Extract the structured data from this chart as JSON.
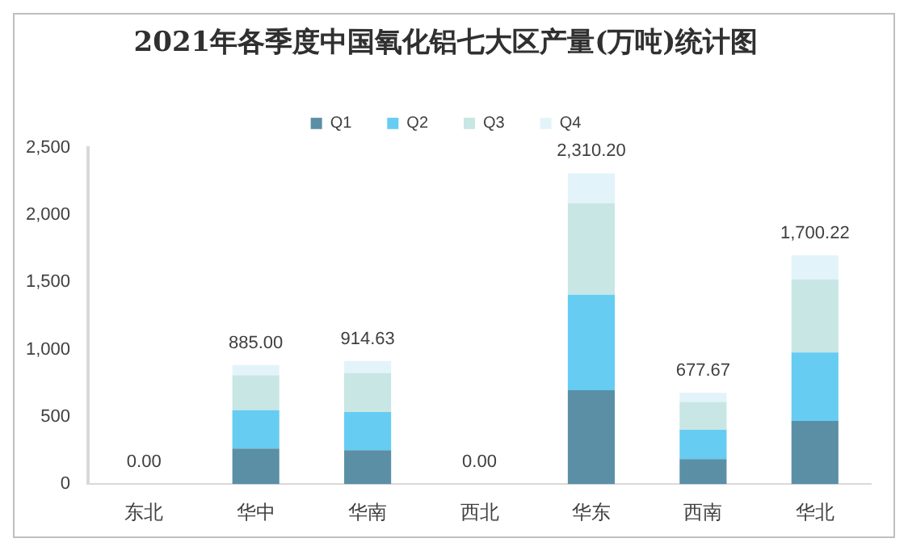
{
  "chart_data": {
    "type": "bar",
    "title": "2021年各季度中国氧化铝七大区产量(万吨)统计图",
    "categories": [
      "东北",
      "华中",
      "华南",
      "西北",
      "华东",
      "西南",
      "华北"
    ],
    "stacked": true,
    "legend": "top",
    "grid": false,
    "ylim": [
      0,
      2500
    ],
    "yticks": [
      {
        "value": 0,
        "label": "0"
      },
      {
        "value": 500,
        "label": "500"
      },
      {
        "value": 1000,
        "label": "1,000"
      },
      {
        "value": 1500,
        "label": "1,500"
      },
      {
        "value": 2000,
        "label": "2,000"
      },
      {
        "value": 2500,
        "label": "2,500"
      }
    ],
    "series": [
      {
        "name": "Q1",
        "color": "#5b8fa6",
        "values": [
          0,
          264,
          252,
          0,
          697,
          186,
          470
        ]
      },
      {
        "name": "Q2",
        "color": "#66ccf2",
        "values": [
          0,
          285,
          284,
          0,
          710,
          218,
          508
        ]
      },
      {
        "name": "Q3",
        "color": "#c8e6e4",
        "values": [
          0,
          260,
          289,
          0,
          680,
          207,
          544
        ]
      },
      {
        "name": "Q4",
        "color": "#e2f4fa",
        "values": [
          0,
          76,
          89.63,
          0,
          223.2,
          66.67,
          178.22
        ]
      }
    ],
    "totals": [
      "0.00",
      "885.00",
      "914.63",
      "0.00",
      "2,310.20",
      "677.67",
      "1,700.22"
    ]
  }
}
